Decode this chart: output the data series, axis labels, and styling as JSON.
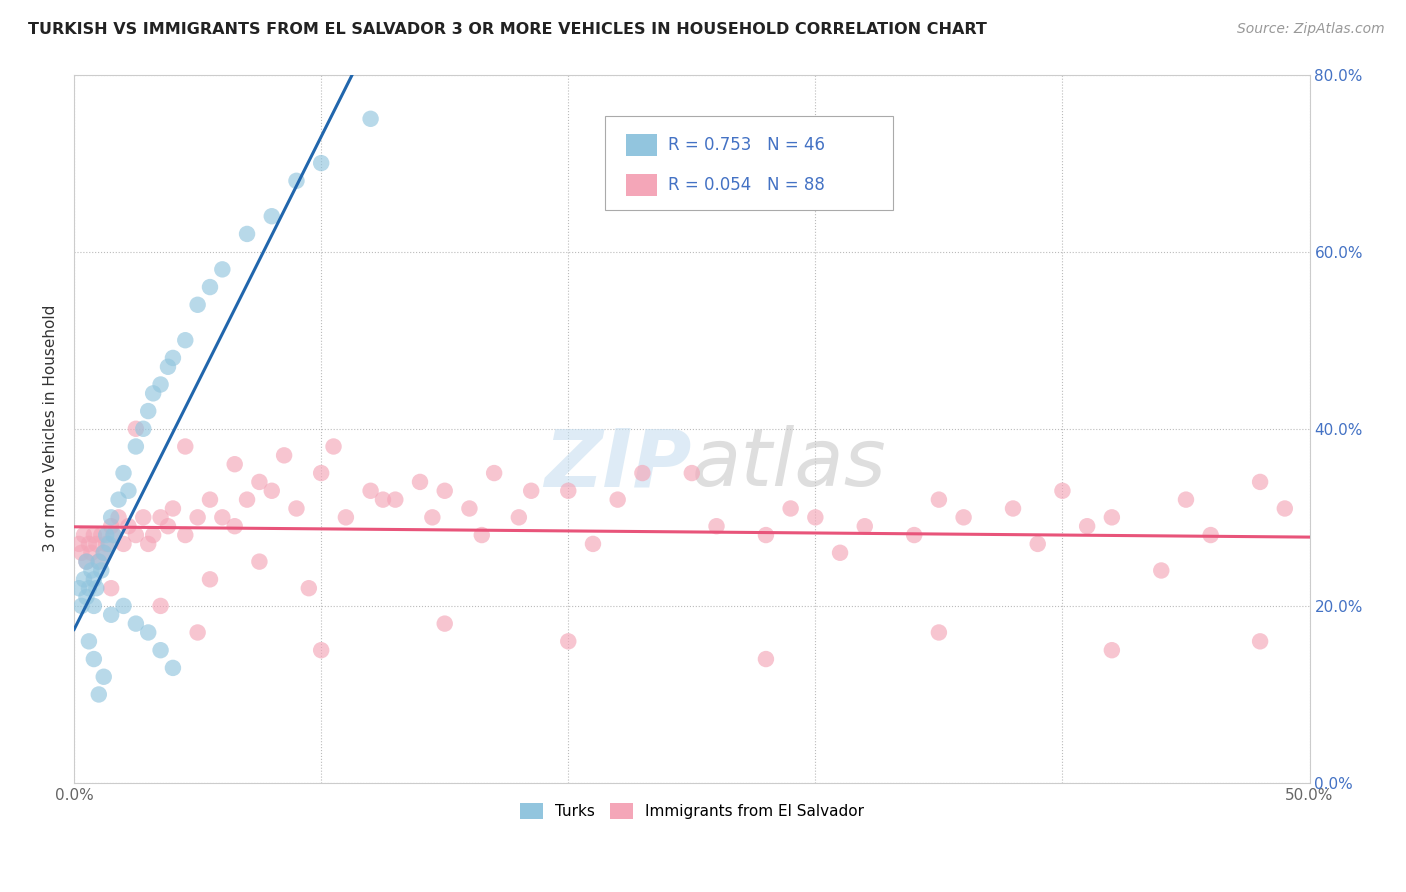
{
  "title": "TURKISH VS IMMIGRANTS FROM EL SALVADOR 3 OR MORE VEHICLES IN HOUSEHOLD CORRELATION CHART",
  "source": "Source: ZipAtlas.com",
  "xlim": [
    0.0,
    0.5
  ],
  "ylim": [
    0.0,
    0.8
  ],
  "x_tick_vals": [
    0.0,
    0.1,
    0.2,
    0.3,
    0.4,
    0.5
  ],
  "x_tick_labels": [
    "0.0%",
    "",
    "",
    "",
    "",
    "50.0%"
  ],
  "y_tick_vals": [
    0.0,
    0.2,
    0.4,
    0.6,
    0.8
  ],
  "y_tick_labels": [
    "0.0%",
    "20.0%",
    "40.0%",
    "60.0%",
    "80.0%"
  ],
  "watermark": "ZIPatlas",
  "legend_r1": "0.753",
  "legend_n1": "46",
  "legend_r2": "0.054",
  "legend_n2": "88",
  "ylabel": "3 or more Vehicles in Household",
  "legend_labels": [
    "Turks",
    "Immigrants from El Salvador"
  ],
  "blue_color": "#92c5de",
  "pink_color": "#f4a6b8",
  "blue_line_color": "#2166ac",
  "pink_line_color": "#e8547a",
  "turks_x": [
    0.002,
    0.003,
    0.004,
    0.005,
    0.005,
    0.006,
    0.007,
    0.008,
    0.008,
    0.009,
    0.01,
    0.011,
    0.012,
    0.013,
    0.014,
    0.015,
    0.016,
    0.018,
    0.02,
    0.022,
    0.025,
    0.028,
    0.03,
    0.032,
    0.035,
    0.038,
    0.04,
    0.045,
    0.05,
    0.055,
    0.06,
    0.07,
    0.08,
    0.09,
    0.1,
    0.12,
    0.015,
    0.02,
    0.025,
    0.03,
    0.035,
    0.04,
    0.01,
    0.012,
    0.008,
    0.006
  ],
  "turks_y": [
    0.22,
    0.2,
    0.23,
    0.21,
    0.25,
    0.22,
    0.24,
    0.2,
    0.23,
    0.22,
    0.25,
    0.24,
    0.26,
    0.28,
    0.27,
    0.3,
    0.28,
    0.32,
    0.35,
    0.33,
    0.38,
    0.4,
    0.42,
    0.44,
    0.45,
    0.47,
    0.48,
    0.5,
    0.54,
    0.56,
    0.58,
    0.62,
    0.64,
    0.68,
    0.7,
    0.75,
    0.19,
    0.2,
    0.18,
    0.17,
    0.15,
    0.13,
    0.1,
    0.12,
    0.14,
    0.16
  ],
  "salvador_x": [
    0.002,
    0.003,
    0.004,
    0.005,
    0.006,
    0.007,
    0.008,
    0.009,
    0.01,
    0.011,
    0.012,
    0.013,
    0.015,
    0.016,
    0.018,
    0.02,
    0.022,
    0.025,
    0.028,
    0.03,
    0.032,
    0.035,
    0.038,
    0.04,
    0.045,
    0.05,
    0.055,
    0.06,
    0.065,
    0.07,
    0.075,
    0.08,
    0.09,
    0.1,
    0.11,
    0.12,
    0.13,
    0.14,
    0.15,
    0.16,
    0.17,
    0.18,
    0.2,
    0.22,
    0.25,
    0.28,
    0.3,
    0.32,
    0.35,
    0.38,
    0.4,
    0.42,
    0.45,
    0.48,
    0.015,
    0.025,
    0.035,
    0.045,
    0.055,
    0.065,
    0.075,
    0.085,
    0.095,
    0.105,
    0.125,
    0.145,
    0.165,
    0.185,
    0.21,
    0.23,
    0.26,
    0.29,
    0.31,
    0.34,
    0.36,
    0.39,
    0.41,
    0.44,
    0.46,
    0.49,
    0.05,
    0.1,
    0.15,
    0.2,
    0.28,
    0.35,
    0.42,
    0.48
  ],
  "salvador_y": [
    0.27,
    0.26,
    0.28,
    0.25,
    0.27,
    0.26,
    0.28,
    0.27,
    0.25,
    0.28,
    0.26,
    0.27,
    0.29,
    0.28,
    0.3,
    0.27,
    0.29,
    0.28,
    0.3,
    0.27,
    0.28,
    0.3,
    0.29,
    0.31,
    0.28,
    0.3,
    0.32,
    0.3,
    0.29,
    0.32,
    0.34,
    0.33,
    0.31,
    0.35,
    0.3,
    0.33,
    0.32,
    0.34,
    0.33,
    0.31,
    0.35,
    0.3,
    0.33,
    0.32,
    0.35,
    0.28,
    0.3,
    0.29,
    0.32,
    0.31,
    0.33,
    0.3,
    0.32,
    0.34,
    0.22,
    0.4,
    0.2,
    0.38,
    0.23,
    0.36,
    0.25,
    0.37,
    0.22,
    0.38,
    0.32,
    0.3,
    0.28,
    0.33,
    0.27,
    0.35,
    0.29,
    0.31,
    0.26,
    0.28,
    0.3,
    0.27,
    0.29,
    0.24,
    0.28,
    0.31,
    0.17,
    0.15,
    0.18,
    0.16,
    0.14,
    0.17,
    0.15,
    0.16
  ]
}
